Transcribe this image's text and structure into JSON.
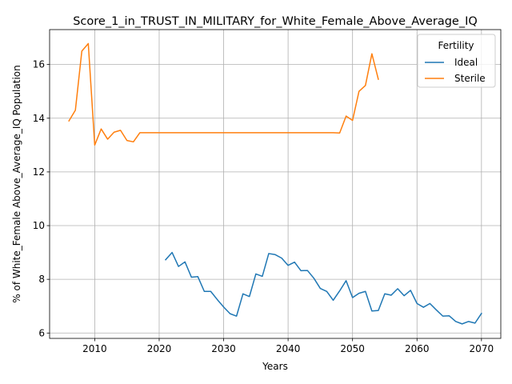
{
  "chart_data": {
    "type": "line",
    "title": "Score_1_in_TRUST_IN_MILITARY_for_White_Female_Above_Average_IQ",
    "xlabel": "Years",
    "ylabel": "% of White_Female Above_Average_IQ Population",
    "xlim": [
      2003,
      2073
    ],
    "ylim": [
      5.8,
      17.3
    ],
    "xticks": [
      2010,
      2020,
      2030,
      2040,
      2050,
      2060,
      2070
    ],
    "yticks": [
      6,
      8,
      10,
      12,
      14,
      16
    ],
    "xtick_labels": [
      "2010",
      "2020",
      "2030",
      "2040",
      "2050",
      "2060",
      "2070"
    ],
    "ytick_labels": [
      "6",
      "8",
      "10",
      "12",
      "14",
      "16"
    ],
    "grid": true,
    "legend": {
      "title": "Fertility",
      "placement": "top-right"
    },
    "series": [
      {
        "name": "Ideal",
        "color": "#1f77b4",
        "x": [
          2021,
          2022,
          2023,
          2024,
          2025,
          2026,
          2027,
          2028,
          2029,
          2030,
          2031,
          2032,
          2033,
          2034,
          2035,
          2036,
          2037,
          2038,
          2039,
          2040,
          2041,
          2042,
          2043,
          2044,
          2045,
          2046,
          2047,
          2048,
          2049,
          2050,
          2051,
          2052,
          2053,
          2054,
          2055,
          2056,
          2057,
          2058,
          2059,
          2060,
          2061,
          2062,
          2063,
          2064,
          2065,
          2066,
          2067,
          2068,
          2069,
          2070
        ],
        "y": [
          8.73,
          9.0,
          8.48,
          8.65,
          8.08,
          8.1,
          7.55,
          7.55,
          7.25,
          6.97,
          6.72,
          6.63,
          7.46,
          7.36,
          8.2,
          8.11,
          8.96,
          8.92,
          8.79,
          8.52,
          8.64,
          8.32,
          8.33,
          8.04,
          7.66,
          7.55,
          7.22,
          7.57,
          7.95,
          7.32,
          7.48,
          7.55,
          6.82,
          6.84,
          7.46,
          7.41,
          7.65,
          7.39,
          7.59,
          7.1,
          6.96,
          7.1,
          6.86,
          6.63,
          6.64,
          6.43,
          6.34,
          6.43,
          6.37,
          6.73
        ]
      },
      {
        "name": "Sterile",
        "color": "#ff7f0e",
        "x": [
          2006,
          2007,
          2008,
          2009,
          2010,
          2011,
          2012,
          2013,
          2014,
          2015,
          2016,
          2017,
          2018,
          2019,
          2020,
          2021,
          2022,
          2023,
          2024,
          2025,
          2026,
          2027,
          2028,
          2029,
          2030,
          2031,
          2032,
          2033,
          2034,
          2035,
          2036,
          2037,
          2038,
          2039,
          2040,
          2041,
          2042,
          2043,
          2044,
          2045,
          2046,
          2047,
          2048,
          2049,
          2050,
          2051,
          2052,
          2053,
          2054
        ],
        "y": [
          13.9,
          14.3,
          16.5,
          16.78,
          13.0,
          13.6,
          13.22,
          13.48,
          13.55,
          13.17,
          13.12,
          13.46,
          13.46,
          13.46,
          13.46,
          13.46,
          13.46,
          13.46,
          13.46,
          13.46,
          13.46,
          13.46,
          13.46,
          13.46,
          13.46,
          13.46,
          13.46,
          13.46,
          13.46,
          13.46,
          13.46,
          13.46,
          13.46,
          13.46,
          13.46,
          13.46,
          13.46,
          13.46,
          13.46,
          13.46,
          13.46,
          13.46,
          13.45,
          14.08,
          13.92,
          15.0,
          15.22,
          16.4,
          15.45
        ]
      }
    ]
  }
}
